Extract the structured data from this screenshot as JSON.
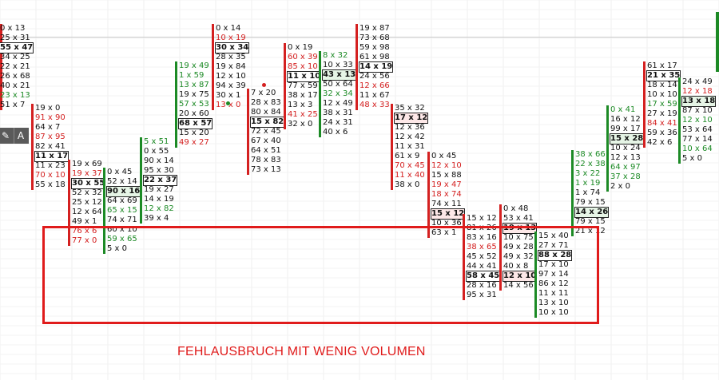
{
  "caption": "FEHLAUSBRUCH MIT WENIG VOLUMEN",
  "colors": {
    "bid_heavy": "#d42020",
    "ask_heavy": "#1c8a25",
    "neutral": "#111111",
    "highlight": "#e01b1b"
  },
  "toolbox": {
    "pen_icon": "pen-icon",
    "letter": "A"
  },
  "chart_data": {
    "type": "footprint",
    "columns": [
      {
        "dir": "down",
        "cells": [
          [
            "0",
            "13",
            ""
          ],
          [
            "25",
            "31",
            "r"
          ],
          [
            "55",
            "47",
            "box"
          ],
          [
            "34",
            "25",
            ""
          ],
          [
            "22",
            "21",
            ""
          ],
          [
            "26",
            "68",
            ""
          ],
          [
            "40",
            "21",
            ""
          ],
          [
            "23",
            "13",
            "ga"
          ],
          [
            "51",
            "7",
            ""
          ]
        ]
      },
      {
        "dir": "down",
        "cells": [
          [
            "19",
            "0",
            ""
          ],
          [
            "91",
            "90",
            "rb"
          ],
          [
            "64",
            "7",
            ""
          ],
          [
            "87",
            "95",
            "rb"
          ],
          [
            "82",
            "41",
            ""
          ],
          [
            "11",
            "17",
            "box"
          ],
          [
            "11",
            "23",
            ""
          ],
          [
            "70",
            "10",
            "rb"
          ],
          [
            "55",
            "18",
            ""
          ]
        ]
      },
      {
        "dir": "down",
        "cells": [
          [
            "19",
            "69",
            ""
          ],
          [
            "19",
            "37",
            "rb"
          ],
          [
            "30",
            "55",
            "box"
          ],
          [
            "52",
            "32",
            ""
          ],
          [
            "25",
            "12",
            ""
          ],
          [
            "12",
            "64",
            ""
          ],
          [
            "49",
            "1",
            ""
          ],
          [
            "76",
            "6",
            "rb"
          ],
          [
            "77",
            "0",
            "rb"
          ]
        ]
      },
      {
        "dir": "up",
        "cells": [
          [
            "0",
            "45",
            ""
          ],
          [
            "52",
            "14",
            ""
          ],
          [
            "90",
            "16",
            "boxg"
          ],
          [
            "64",
            "69",
            ""
          ],
          [
            "65",
            "15",
            "ga"
          ],
          [
            "74",
            "71",
            ""
          ],
          [
            "60",
            "10",
            ""
          ],
          [
            "59",
            "65",
            "ga"
          ],
          [
            "5",
            "0",
            ""
          ]
        ]
      },
      {
        "dir": "up",
        "cells": [
          [
            "5",
            "51",
            "ga"
          ],
          [
            "0",
            "55",
            ""
          ],
          [
            "90",
            "14",
            ""
          ],
          [
            "95",
            "30",
            ""
          ],
          [
            "22",
            "37",
            "box"
          ],
          [
            "19",
            "27",
            ""
          ],
          [
            "14",
            "19",
            ""
          ],
          [
            "12",
            "82",
            "ga"
          ],
          [
            "39",
            "4",
            ""
          ]
        ]
      },
      {
        "dir": "up",
        "cells": [
          [
            "19",
            "49",
            "ga"
          ],
          [
            "1",
            "59",
            "ga"
          ],
          [
            "13",
            "87",
            "ga"
          ],
          [
            "19",
            "75",
            ""
          ],
          [
            "57",
            "53",
            "ga"
          ],
          [
            "20",
            "60",
            ""
          ],
          [
            "68",
            "57",
            "box"
          ],
          [
            "15",
            "20",
            ""
          ],
          [
            "49",
            "27",
            "rb"
          ]
        ]
      },
      {
        "dir": "down",
        "cells": [
          [
            "0",
            "14",
            ""
          ],
          [
            "10",
            "19",
            "rb"
          ],
          [
            "30",
            "34",
            "box"
          ],
          [
            "28",
            "35",
            ""
          ],
          [
            "19",
            "84",
            ""
          ],
          [
            "12",
            "10",
            ""
          ],
          [
            "94",
            "39",
            ""
          ],
          [
            "30",
            "1",
            ""
          ],
          [
            "13",
            "0",
            "rb"
          ]
        ]
      },
      {
        "dir": "down",
        "cells": [
          [
            "7",
            "20",
            ""
          ],
          [
            "28",
            "83",
            ""
          ],
          [
            "80",
            "84",
            ""
          ],
          [
            "15",
            "82",
            "box"
          ],
          [
            "72",
            "45",
            ""
          ],
          [
            "67",
            "40",
            ""
          ],
          [
            "64",
            "51",
            ""
          ],
          [
            "78",
            "83",
            ""
          ],
          [
            "73",
            "13",
            ""
          ]
        ]
      },
      {
        "dir": "down",
        "cells": [
          [
            "0",
            "19",
            ""
          ],
          [
            "60",
            "39",
            "rb"
          ],
          [
            "85",
            "10",
            "rb"
          ],
          [
            "11",
            "10",
            "box"
          ],
          [
            "77",
            "59",
            ""
          ],
          [
            "38",
            "17",
            ""
          ],
          [
            "13",
            "3",
            ""
          ],
          [
            "41",
            "25",
            "rb"
          ],
          [
            "32",
            "0",
            ""
          ]
        ]
      },
      {
        "dir": "up",
        "cells": [
          [
            "8",
            "32",
            "ga"
          ],
          [
            "10",
            "33",
            ""
          ],
          [
            "43",
            "13",
            "boxg"
          ],
          [
            "50",
            "64",
            ""
          ],
          [
            "32",
            "34",
            "ga"
          ],
          [
            "12",
            "49",
            ""
          ],
          [
            "38",
            "31",
            ""
          ],
          [
            "24",
            "31",
            ""
          ],
          [
            "40",
            "6",
            ""
          ]
        ]
      },
      {
        "dir": "down",
        "cells": [
          [
            "19",
            "87",
            ""
          ],
          [
            "73",
            "68",
            ""
          ],
          [
            "59",
            "98",
            ""
          ],
          [
            "61",
            "98",
            ""
          ],
          [
            "14",
            "19",
            "box"
          ],
          [
            "24",
            "56",
            ""
          ],
          [
            "12",
            "66",
            "rb"
          ],
          [
            "11",
            "67",
            ""
          ],
          [
            "48",
            "33",
            "rb"
          ]
        ]
      },
      {
        "dir": "down",
        "cells": [
          [
            "35",
            "32",
            ""
          ],
          [
            "17",
            "12",
            "boxr"
          ],
          [
            "12",
            "36",
            ""
          ],
          [
            "12",
            "42",
            ""
          ],
          [
            "11",
            "31",
            ""
          ],
          [
            "61",
            "9",
            ""
          ],
          [
            "70",
            "45",
            "rb"
          ],
          [
            "11",
            "40",
            "rb"
          ],
          [
            "38",
            "0",
            ""
          ]
        ]
      },
      {
        "dir": "down",
        "cells": [
          [
            "0",
            "45",
            ""
          ],
          [
            "12",
            "10",
            "rb"
          ],
          [
            "15",
            "88",
            ""
          ],
          [
            "19",
            "47",
            "rb"
          ],
          [
            "18",
            "74",
            "rb"
          ],
          [
            "74",
            "11",
            ""
          ],
          [
            "15",
            "12",
            "boxr"
          ],
          [
            "10",
            "36",
            ""
          ],
          [
            "63",
            "1",
            ""
          ]
        ]
      },
      {
        "dir": "down",
        "cells": [
          [
            "15",
            "12",
            ""
          ],
          [
            "81",
            "26",
            ""
          ],
          [
            "83",
            "16",
            ""
          ],
          [
            "38",
            "65",
            "rb"
          ],
          [
            "45",
            "52",
            ""
          ],
          [
            "44",
            "41",
            ""
          ],
          [
            "58",
            "45",
            "box"
          ],
          [
            "28",
            "16",
            ""
          ],
          [
            "95",
            "31",
            ""
          ]
        ]
      },
      {
        "dir": "down",
        "cells": [
          [
            "0",
            "48",
            ""
          ],
          [
            "53",
            "41",
            ""
          ],
          [
            "19",
            "13",
            "boxr"
          ],
          [
            "10",
            "75",
            ""
          ],
          [
            "49",
            "28",
            ""
          ],
          [
            "49",
            "32",
            ""
          ],
          [
            "40",
            "8",
            ""
          ],
          [
            "12",
            "10",
            "boxr"
          ],
          [
            "14",
            "56",
            ""
          ]
        ]
      },
      {
        "dir": "up",
        "cells": [
          [
            "15",
            "40",
            ""
          ],
          [
            "27",
            "71",
            ""
          ],
          [
            "88",
            "28",
            "box"
          ],
          [
            "17",
            "10",
            ""
          ],
          [
            "97",
            "14",
            ""
          ],
          [
            "86",
            "12",
            ""
          ],
          [
            "11",
            "11",
            ""
          ],
          [
            "13",
            "10",
            ""
          ],
          [
            "10",
            "10",
            ""
          ]
        ]
      },
      {
        "dir": "up",
        "cells": [
          [
            "38",
            "66",
            "ga"
          ],
          [
            "22",
            "38",
            "ga"
          ],
          [
            "3",
            "22",
            "ga"
          ],
          [
            "1",
            "19",
            "ga"
          ],
          [
            "1",
            "74",
            ""
          ],
          [
            "79",
            "15",
            ""
          ],
          [
            "14",
            "26",
            "boxg"
          ],
          [
            "79",
            "15",
            ""
          ],
          [
            "21",
            "12",
            ""
          ]
        ]
      },
      {
        "dir": "up",
        "cells": [
          [
            "0",
            "41",
            "ga"
          ],
          [
            "16",
            "12",
            ""
          ],
          [
            "99",
            "17",
            ""
          ],
          [
            "15",
            "28",
            "boxg"
          ],
          [
            "10",
            "24",
            ""
          ],
          [
            "12",
            "13",
            ""
          ],
          [
            "64",
            "97",
            "ga"
          ],
          [
            "37",
            "28",
            "ga"
          ],
          [
            "2",
            "0",
            ""
          ]
        ]
      },
      {
        "dir": "down",
        "cells": [
          [
            "61",
            "17",
            ""
          ],
          [
            "21",
            "35",
            "box"
          ],
          [
            "18",
            "14",
            ""
          ],
          [
            "10",
            "10",
            ""
          ],
          [
            "17",
            "59",
            "ga"
          ],
          [
            "27",
            "19",
            ""
          ],
          [
            "84",
            "41",
            "rb"
          ],
          [
            "59",
            "36",
            ""
          ],
          [
            "42",
            "6",
            ""
          ]
        ]
      },
      {
        "dir": "up",
        "cells": [
          [
            "24",
            "49",
            ""
          ],
          [
            "12",
            "18",
            "rb"
          ],
          [
            "13",
            "18",
            "boxg"
          ],
          [
            "87",
            "10",
            ""
          ],
          [
            "12",
            "10",
            "ga"
          ],
          [
            "53",
            "64",
            ""
          ],
          [
            "77",
            "14",
            ""
          ],
          [
            "10",
            "64",
            "ga"
          ],
          [
            "5",
            "0",
            ""
          ]
        ]
      }
    ]
  }
}
